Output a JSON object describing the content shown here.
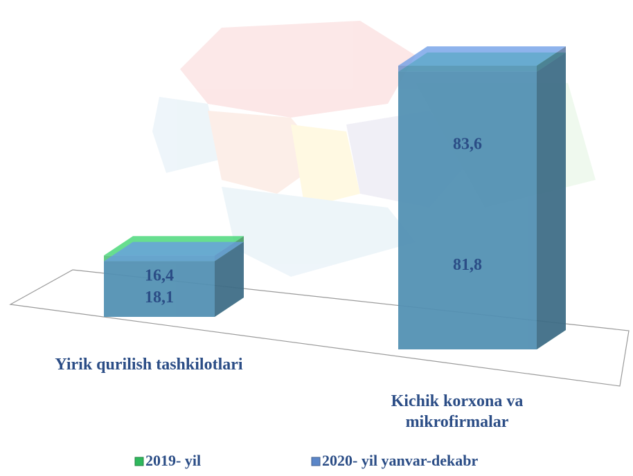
{
  "chart_data": {
    "type": "bar3d",
    "categories": [
      "Yirik qurilish tashkilotlari",
      "Kichik korxona va mikrofirmalar"
    ],
    "series": [
      {
        "name": "2019- yil",
        "color": "#2eb85c",
        "values": [
          18.1,
          81.8
        ],
        "value_labels": [
          "18,1",
          "81,8"
        ]
      },
      {
        "name": "2020- yil yanvar-dekabr",
        "color": "#5b86c8",
        "values": [
          16.4,
          83.6
        ],
        "value_labels": [
          "16,4",
          "83,6"
        ]
      }
    ],
    "legend": "bottom"
  }
}
